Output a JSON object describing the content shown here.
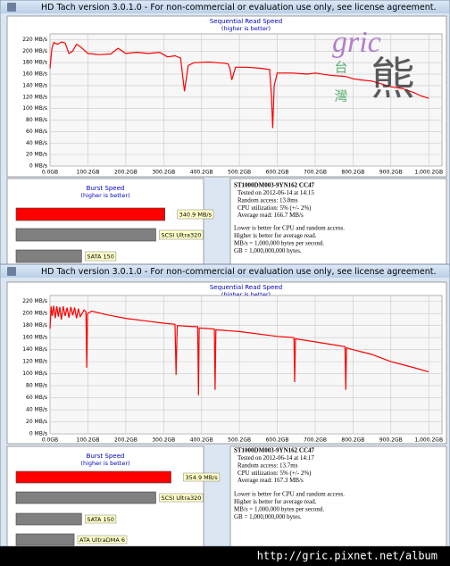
{
  "windows": [
    {
      "title": "HD Tach version 3.0.1.0  - For non-commercial or evaluation use only, see license agreement.",
      "info": {
        "drive": "ST1000DM003-9YN162 CC47",
        "lines": [
          "Tested on 2012-06-14 at 14:15",
          "Random access: 13.8ms",
          "CPU utilization: 5% (+/- 2%)",
          "Average read: 166.7 MB/s"
        ],
        "notes": [
          "Lower is better for CPU and random access.",
          "Higher is better for average read.",
          "MB/s = 1,000,000 bytes per second.",
          "GB = 1,000,000,000 bytes."
        ]
      }
    },
    {
      "title": "HD Tach version 3.0.1.0  - For non-commercial or evaluation use only, see license agreement.",
      "info": {
        "drive": "ST1000DM003-9YN162 CC47",
        "lines": [
          "Tested on 2012-06-14 at 14:17",
          "Random access: 13.7ms",
          "CPU utilization: 5% (+/- 2%)",
          "Average read: 167.3 MB/s"
        ],
        "notes": [
          "Lower is better for CPU and random access.",
          "Higher is better for average read.",
          "MB/s = 1,000,000 bytes per second.",
          "GB = 1,000,000,000 bytes."
        ]
      }
    }
  ],
  "watermark": {
    "text": "gric",
    "chars": [
      "台",
      "灣",
      "熊"
    ]
  },
  "footer": "http://gric.pixnet.net/album",
  "chart_data": [
    {
      "type": "line",
      "title": "Sequential Read Speed",
      "subtitle": "(higher is better)",
      "color": "#ff0000",
      "grid": true,
      "xlim": [
        0,
        1035
      ],
      "ylim": [
        0,
        230
      ],
      "xticks": [
        {
          "value": 0,
          "label": "0.0GB"
        },
        {
          "value": 100.2,
          "label": "100.2GB"
        },
        {
          "value": 200.2,
          "label": "200.2GB"
        },
        {
          "value": 300.2,
          "label": "300.2GB"
        },
        {
          "value": 400.2,
          "label": "400.2GB"
        },
        {
          "value": 500.2,
          "label": "500.2GB"
        },
        {
          "value": 600.2,
          "label": "600.2GB"
        },
        {
          "value": 700.2,
          "label": "700.2GB"
        },
        {
          "value": 800.2,
          "label": "800.2GB"
        },
        {
          "value": 900.2,
          "label": "900.2GB"
        },
        {
          "value": 1000.2,
          "label": "1,000.2GB"
        }
      ],
      "yticks": [
        {
          "value": 0,
          "label": "0 MB/s"
        },
        {
          "value": 20,
          "label": "20 MB/s"
        },
        {
          "value": 40,
          "label": "40 MB/s"
        },
        {
          "value": 60,
          "label": "60 MB/s"
        },
        {
          "value": 80,
          "label": "80 MB/s"
        },
        {
          "value": 100,
          "label": "100 MB/s"
        },
        {
          "value": 120,
          "label": "120 MB/s"
        },
        {
          "value": 140,
          "label": "140 MB/s"
        },
        {
          "value": 160,
          "label": "160 MB/s"
        },
        {
          "value": 180,
          "label": "180 MB/s"
        },
        {
          "value": 200,
          "label": "200 MB/s"
        },
        {
          "value": 220,
          "label": "220 MB/s"
        }
      ],
      "x": [
        0,
        5,
        10,
        20,
        30,
        40,
        50,
        60,
        70,
        80,
        100,
        130,
        160,
        180,
        200,
        230,
        260,
        290,
        310,
        330,
        345,
        350,
        355,
        365,
        380,
        420,
        460,
        470,
        475,
        480,
        490,
        520,
        560,
        580,
        585,
        588,
        592,
        600,
        640,
        680,
        700,
        740,
        780,
        800,
        820,
        850,
        880,
        900,
        930,
        960,
        980,
        1000
      ],
      "y": [
        170,
        205,
        215,
        212,
        216,
        214,
        196,
        200,
        212,
        208,
        196,
        194,
        195,
        205,
        196,
        198,
        196,
        198,
        190,
        192,
        188,
        158,
        130,
        175,
        180,
        181,
        179,
        178,
        170,
        150,
        172,
        172,
        170,
        168,
        120,
        66,
        140,
        162,
        162,
        160,
        162,
        158,
        156,
        152,
        150,
        148,
        142,
        138,
        135,
        128,
        122,
        118
      ]
    },
    {
      "type": "bar",
      "title": "Burst Speed",
      "subtitle": "(higher is better)",
      "xlim": [
        0,
        360
      ],
      "categories": [
        null,
        "SCSI Ultra320",
        "SATA 150"
      ],
      "values": [
        340.9,
        320,
        150
      ],
      "value_labels": [
        "340.9 MB/s",
        null,
        null
      ],
      "colors": [
        "#ff0000",
        "#808080",
        "#808080"
      ]
    },
    {
      "type": "line",
      "title": "Sequential Read Speed",
      "subtitle": "(higher is better)",
      "color": "#ff0000",
      "grid": true,
      "xlim": [
        0,
        1035
      ],
      "ylim": [
        0,
        230
      ],
      "xticks": [
        {
          "value": 0,
          "label": "0.0GB"
        },
        {
          "value": 100.2,
          "label": "100.2GB"
        },
        {
          "value": 200.2,
          "label": "200.2GB"
        },
        {
          "value": 300.2,
          "label": "300.2GB"
        },
        {
          "value": 400.2,
          "label": "400.2GB"
        },
        {
          "value": 500.2,
          "label": "500.2GB"
        },
        {
          "value": 600.2,
          "label": "600.2GB"
        },
        {
          "value": 700.2,
          "label": "700.2GB"
        },
        {
          "value": 800.2,
          "label": "800.2GB"
        },
        {
          "value": 900.2,
          "label": "900.2GB"
        },
        {
          "value": 1000.2,
          "label": "1,000.2GB"
        }
      ],
      "yticks": [
        {
          "value": 0,
          "label": "0 MB/s"
        },
        {
          "value": 20,
          "label": "20 MB/s"
        },
        {
          "value": 40,
          "label": "40 MB/s"
        },
        {
          "value": 60,
          "label": "60 MB/s"
        },
        {
          "value": 80,
          "label": "80 MB/s"
        },
        {
          "value": 100,
          "label": "100 MB/s"
        },
        {
          "value": 120,
          "label": "120 MB/s"
        },
        {
          "value": 140,
          "label": "140 MB/s"
        },
        {
          "value": 160,
          "label": "160 MB/s"
        },
        {
          "value": 180,
          "label": "180 MB/s"
        },
        {
          "value": 200,
          "label": "200 MB/s"
        },
        {
          "value": 220,
          "label": "220 MB/s"
        }
      ],
      "x": [
        0,
        3,
        6,
        10,
        14,
        18,
        22,
        26,
        30,
        35,
        40,
        45,
        50,
        55,
        60,
        65,
        70,
        75,
        80,
        90,
        95,
        97,
        99,
        110,
        150,
        200,
        250,
        300,
        330,
        333,
        336,
        360,
        390,
        392,
        394,
        420,
        434,
        436,
        438,
        500,
        600,
        644,
        646,
        648,
        700,
        779,
        781,
        783,
        800,
        850,
        900,
        950,
        1000
      ],
      "y": [
        175,
        212,
        196,
        213,
        192,
        212,
        195,
        211,
        190,
        212,
        196,
        210,
        193,
        211,
        197,
        210,
        192,
        208,
        195,
        206,
        203,
        110,
        200,
        204,
        198,
        192,
        188,
        184,
        182,
        98,
        180,
        179,
        178,
        64,
        176,
        175,
        174,
        73,
        173,
        170,
        162,
        160,
        86,
        158,
        153,
        145,
        73,
        143,
        140,
        132,
        120,
        112,
        103
      ]
    },
    {
      "type": "bar",
      "title": "Burst Speed",
      "subtitle": "(higher is better)",
      "xlim": [
        0,
        360
      ],
      "categories": [
        null,
        "SCSI Ultra320",
        "SATA 150",
        "ATA UltraDMA 6"
      ],
      "values": [
        354.9,
        320,
        150,
        133
      ],
      "value_labels": [
        "354.9 MB/s",
        null,
        null,
        null
      ],
      "colors": [
        "#ff0000",
        "#808080",
        "#808080",
        "#808080"
      ]
    }
  ]
}
